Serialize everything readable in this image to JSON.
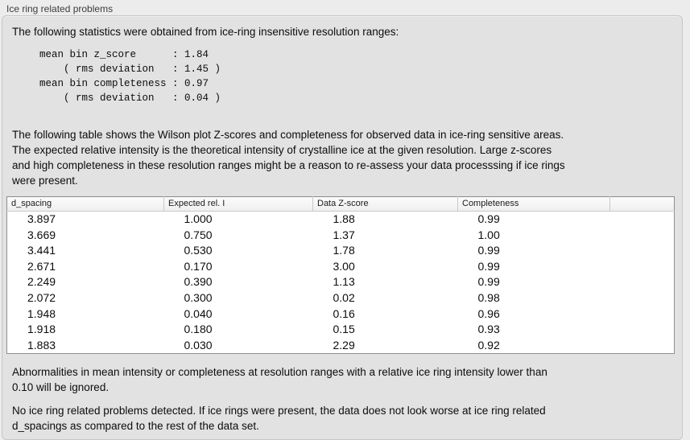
{
  "panel": {
    "title": "Ice ring related problems"
  },
  "intro": "The following statistics were obtained from ice-ring insensitive resolution ranges:",
  "stats_block": "mean bin z_score      : 1.84\n    ( rms deviation   : 1.45 )\nmean bin completeness : 0.97\n    ( rms deviation   : 0.04 )",
  "stats": {
    "mean_bin_z_score": "1.84",
    "z_score_rms_deviation": "1.45",
    "mean_bin_completeness": "0.97",
    "completeness_rms_deviation": "0.04"
  },
  "description": "The following table shows the Wilson plot Z-scores and completeness for observed data in ice-ring sensitive areas.\nThe expected relative intensity is the theoretical intensity of crystalline ice at the given resolution. Large z-scores\nand high completeness in these resolution ranges might be a reason to re-assess your data processsing if ice rings\nwere present.",
  "table": {
    "headers": [
      "d_spacing",
      "Expected rel. I",
      "Data Z-score",
      "Completeness",
      ""
    ],
    "rows": [
      [
        "3.897",
        "1.000",
        "1.88",
        "0.99"
      ],
      [
        "3.669",
        "0.750",
        "1.37",
        "1.00"
      ],
      [
        "3.441",
        "0.530",
        "1.78",
        "0.99"
      ],
      [
        "2.671",
        "0.170",
        "3.00",
        "0.99"
      ],
      [
        "2.249",
        "0.390",
        "1.13",
        "0.99"
      ],
      [
        "2.072",
        "0.300",
        "0.02",
        "0.98"
      ],
      [
        "1.948",
        "0.040",
        "0.16",
        "0.96"
      ],
      [
        "1.918",
        "0.180",
        "0.15",
        "0.93"
      ],
      [
        "1.883",
        "0.030",
        "2.29",
        "0.92"
      ]
    ]
  },
  "notes": {
    "ignore_note": "Abnormalities in mean intensity or completeness at resolution ranges with a relative ice ring intensity lower than\n0.10 will be ignored.",
    "conclusion": "No ice ring related problems detected. If ice rings were present, the data does not look worse at ice ring related\nd_spacings as compared to the rest of the data set."
  },
  "colors": {
    "window_bg": "#ececec",
    "groupbox_bg": "#e2e2e2",
    "groupbox_border": "#c6c6c6",
    "table_bg": "#ffffff",
    "table_border": "#8f8f8f",
    "text": "#0c0c0c"
  }
}
